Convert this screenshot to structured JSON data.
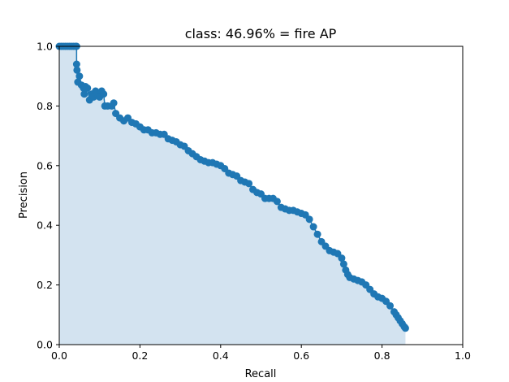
{
  "chart_data": {
    "type": "area",
    "title": "class: 46.96% = fire AP",
    "xlabel": "Recall",
    "ylabel": "Precision",
    "xlim": [
      0.0,
      1.0
    ],
    "ylim": [
      0.0,
      1.0
    ],
    "xticks": [
      "0.0",
      "0.2",
      "0.4",
      "0.6",
      "0.8",
      "1.0"
    ],
    "yticks": [
      "0.0",
      "0.2",
      "0.4",
      "0.6",
      "0.8",
      "1.0"
    ],
    "grid": false,
    "series": [
      {
        "line_color": "#1f77b4",
        "fill_color": "#d3e3f0",
        "recall": [
          0.0,
          0.005,
          0.01,
          0.015,
          0.02,
          0.025,
          0.03,
          0.035,
          0.04,
          0.043,
          0.043,
          0.044,
          0.046,
          0.05,
          0.055,
          0.06,
          0.062,
          0.065,
          0.07,
          0.075,
          0.08,
          0.085,
          0.09,
          0.095,
          0.1,
          0.105,
          0.11,
          0.113,
          0.12,
          0.13,
          0.135,
          0.14,
          0.15,
          0.16,
          0.17,
          0.18,
          0.19,
          0.2,
          0.21,
          0.22,
          0.23,
          0.24,
          0.25,
          0.26,
          0.27,
          0.28,
          0.29,
          0.3,
          0.31,
          0.32,
          0.33,
          0.34,
          0.35,
          0.36,
          0.37,
          0.38,
          0.39,
          0.4,
          0.41,
          0.42,
          0.43,
          0.44,
          0.45,
          0.46,
          0.47,
          0.48,
          0.49,
          0.5,
          0.51,
          0.52,
          0.53,
          0.54,
          0.55,
          0.56,
          0.57,
          0.58,
          0.59,
          0.6,
          0.61,
          0.62,
          0.63,
          0.64,
          0.65,
          0.66,
          0.67,
          0.68,
          0.69,
          0.7,
          0.705,
          0.71,
          0.715,
          0.72,
          0.73,
          0.74,
          0.75,
          0.76,
          0.77,
          0.78,
          0.79,
          0.8,
          0.81,
          0.82,
          0.83,
          0.835,
          0.84,
          0.845,
          0.85,
          0.855,
          0.858
        ],
        "precision": [
          1.0,
          1.0,
          1.0,
          1.0,
          1.0,
          1.0,
          1.0,
          1.0,
          1.0,
          1.0,
          0.94,
          0.92,
          0.88,
          0.9,
          0.87,
          0.86,
          0.84,
          0.865,
          0.86,
          0.82,
          0.84,
          0.83,
          0.85,
          0.84,
          0.83,
          0.85,
          0.84,
          0.8,
          0.8,
          0.8,
          0.81,
          0.775,
          0.76,
          0.75,
          0.76,
          0.745,
          0.74,
          0.73,
          0.72,
          0.72,
          0.71,
          0.71,
          0.705,
          0.705,
          0.69,
          0.685,
          0.68,
          0.67,
          0.665,
          0.65,
          0.64,
          0.63,
          0.62,
          0.615,
          0.61,
          0.61,
          0.605,
          0.6,
          0.59,
          0.575,
          0.57,
          0.565,
          0.55,
          0.545,
          0.54,
          0.52,
          0.51,
          0.505,
          0.49,
          0.49,
          0.49,
          0.48,
          0.46,
          0.455,
          0.45,
          0.45,
          0.445,
          0.44,
          0.435,
          0.42,
          0.395,
          0.37,
          0.345,
          0.33,
          0.315,
          0.31,
          0.305,
          0.29,
          0.27,
          0.25,
          0.235,
          0.225,
          0.22,
          0.215,
          0.21,
          0.2,
          0.185,
          0.17,
          0.16,
          0.155,
          0.145,
          0.13,
          0.11,
          0.1,
          0.09,
          0.08,
          0.07,
          0.06,
          0.055
        ]
      }
    ]
  }
}
